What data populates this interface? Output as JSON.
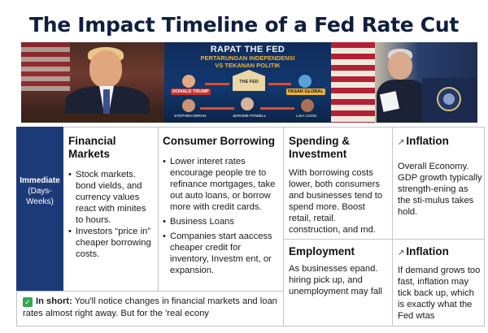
{
  "title": "The Impact Timeline of a Fed Rate Cut",
  "photos": {
    "infographic": {
      "heading": "RAPAT THE FED",
      "subheading_1": "PERTARUNGAN INDEPENDENSI",
      "subheading_2": "VS TEKANAN POLITIK",
      "center_label": "THE FED",
      "tag_left": "DONALD TRUMP",
      "tag_right": "PASAR GLOBAL",
      "cap_1": "STEPHEN MIRAN",
      "cap_2": "JEROME POWELL",
      "cap_3": "LISA COOK"
    }
  },
  "row_label": {
    "line1": "Immediate",
    "line2": "(Days-",
    "line3": "Weeks)"
  },
  "financial_markets": {
    "header": "Financial Markets",
    "bullets": [
      "Stock markets. bond vields, and currency values react with minites to hours.",
      "Investors “price in” cheaper borrowing costs."
    ]
  },
  "consumer_borrowing": {
    "header": "Consumer Borrowing",
    "bullets": [
      "Lower interet rates encourage people tre to refinance mortgages, take out auto loans, or borrow more with credit cards.",
      "Business Loans",
      "Companies start aaccess cheaper credit for inventory, Investm ent, or expansion."
    ]
  },
  "spending": {
    "header": "Spending & Investment",
    "text": "With borrowing costs lower, both consumers and businesses tend to spend more. Boost retail, retail. construction, and md."
  },
  "inflation_top": {
    "header": "Inflation",
    "text": "Overall Economy. GDP growth typically strength-ening as the sti-mulus takes hold."
  },
  "employment": {
    "header": "Employment",
    "text": "As businesses epand. hiring pick up, and unemployment may fall"
  },
  "inflation_bottom": {
    "header": "Inflation",
    "text": "If demand grows too fast, inflation may tick back up, which is exactly what the Fed wtas"
  },
  "in_short": {
    "label": "In short:",
    "text": "You'll notice changes in financial markets and loan rates almost right away. But for the 'real econy"
  },
  "colors": {
    "row_label_bg": "#1d3a78",
    "title": "#0f1f3d",
    "check": "#33a852"
  }
}
